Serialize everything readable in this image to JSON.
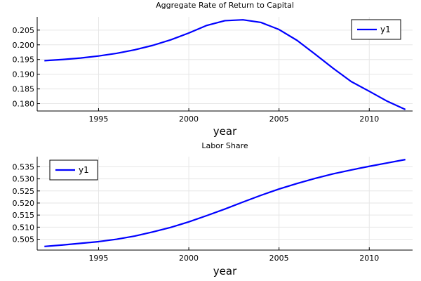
{
  "chart_data": [
    {
      "type": "line",
      "title": "Aggregate Rate of Return to Capital",
      "xlabel": "year",
      "ylabel": "",
      "xlim": [
        1991.6,
        2012.4
      ],
      "ylim": [
        0.1775,
        0.2095
      ],
      "xticks": [
        1995,
        2000,
        2005,
        2010
      ],
      "yticks": [
        0.18,
        0.185,
        0.19,
        0.195,
        0.2,
        0.205
      ],
      "ytick_labels": [
        "0.180",
        "0.185",
        "0.190",
        "0.195",
        "0.200",
        "0.205"
      ],
      "grid": true,
      "legend_position": "top-right",
      "series": [
        {
          "name": "y1",
          "color": "#0000ff",
          "x": [
            1992,
            1993,
            1994,
            1995,
            1996,
            1997,
            1998,
            1999,
            2000,
            2001,
            2002,
            2003,
            2004,
            2005,
            2006,
            2007,
            2008,
            2009,
            2010,
            2011,
            2012
          ],
          "y": [
            0.1946,
            0.195,
            0.1955,
            0.1962,
            0.1971,
            0.1983,
            0.1998,
            0.2017,
            0.204,
            0.2066,
            0.2082,
            0.2085,
            0.2076,
            0.2052,
            0.2015,
            0.1968,
            0.192,
            0.1875,
            0.1842,
            0.1808,
            0.178
          ]
        }
      ]
    },
    {
      "type": "line",
      "title": "Labor Share",
      "xlabel": "year",
      "ylabel": "",
      "xlim": [
        1991.6,
        2012.4
      ],
      "ylim": [
        0.5005,
        0.5392
      ],
      "xticks": [
        1995,
        2000,
        2005,
        2010
      ],
      "yticks": [
        0.505,
        0.51,
        0.515,
        0.52,
        0.525,
        0.53,
        0.535
      ],
      "ytick_labels": [
        "0.505",
        "0.510",
        "0.515",
        "0.520",
        "0.525",
        "0.530",
        "0.535"
      ],
      "grid": true,
      "legend_position": "top-left",
      "series": [
        {
          "name": "y1",
          "color": "#0000ff",
          "x": [
            1992,
            1993,
            1994,
            1995,
            1996,
            1997,
            1998,
            1999,
            2000,
            2001,
            2002,
            2003,
            2004,
            2005,
            2006,
            2007,
            2008,
            2009,
            2010,
            2011,
            2012
          ],
          "y": [
            0.502,
            0.5026,
            0.5033,
            0.504,
            0.505,
            0.5063,
            0.508,
            0.5099,
            0.5122,
            0.5148,
            0.5175,
            0.5204,
            0.5232,
            0.5258,
            0.5281,
            0.5302,
            0.5321,
            0.5337,
            0.5352,
            0.5366,
            0.538
          ]
        }
      ]
    }
  ]
}
